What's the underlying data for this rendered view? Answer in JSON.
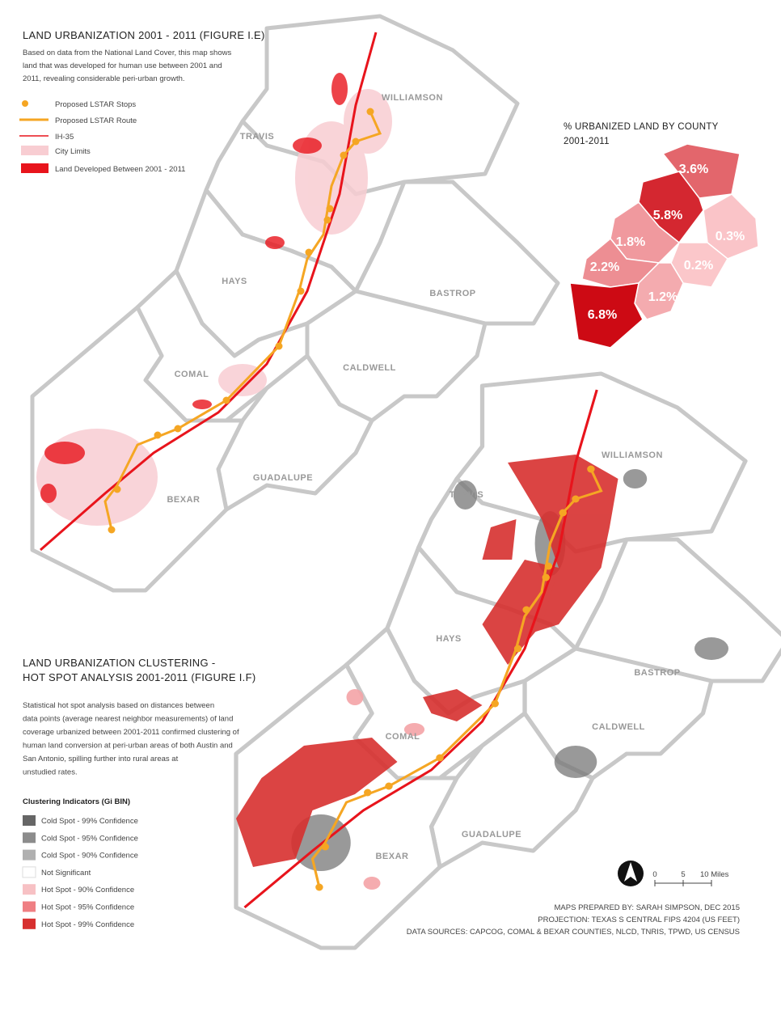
{
  "map1": {
    "title": "LAND URBANIZATION 2001 - 2011 (FIGURE I.E)",
    "description": [
      "Based on data from the National Land Cover, this map shows",
      "land that was developed for human use between 2001 and",
      "2011, revealing considerable peri-urban growth."
    ],
    "legend": [
      "Proposed LSTAR Stops",
      "Proposed LSTAR Route",
      "IH-35",
      "City Limits",
      "Land Developed Between 2001 - 2011"
    ],
    "counties": [
      "WILLIAMSON",
      "TRAVIS",
      "HAYS",
      "BASTROP",
      "COMAL",
      "CALDWELL",
      "GUADALUPE",
      "BEXAR"
    ]
  },
  "inset": {
    "title": [
      "% URBANIZED LAND BY COUNTY",
      "2001-2011"
    ],
    "values": [
      3.6,
      5.8,
      0.3,
      1.8,
      0.2,
      2.2,
      1.2,
      6.8
    ],
    "value_labels": [
      "3.6%",
      "5.8%",
      "0.3%",
      "1.8%",
      "0.2%",
      "2.2%",
      "1.2%",
      "6.8%"
    ]
  },
  "map2": {
    "title": [
      "LAND URBANIZATION CLUSTERING  -",
      "HOT SPOT ANALYSIS 2001-2011 (FIGURE I.F)"
    ],
    "description": [
      "Statistical hot spot analysis based on distances between",
      "data points (average nearest neighbor measurements) of land",
      "coverage urbanized between 2001-2011 confirmed clustering of",
      "human land conversion at peri-urban areas of both Austin and",
      "San Antonio, spilling further into rural areas at",
      "unstudied rates."
    ],
    "legend_title": "Clustering Indicators (Gi BIN)",
    "legend": [
      "Cold Spot - 99% Confidence",
      "Cold Spot - 95% Confidence",
      "Cold Spot - 90% Confidence",
      "Not Significant",
      "Hot Spot - 90% Confidence",
      "Hot Spot - 95% Confidence",
      "Hot Spot - 99% Confidence"
    ],
    "counties": [
      "WILLIAMSON",
      "TRAVIS",
      "HAYS",
      "BASTROP",
      "COMAL",
      "CALDWELL",
      "GUADALUPE",
      "BEXAR"
    ]
  },
  "scale": [
    "0",
    "5",
    "10 Miles"
  ],
  "credits": [
    "MAPS PREPARED BY: SARAH SIMPSON, DEC 2015",
    "PROJECTION: TEXAS S CENTRAL FIPS 4204 (US FEET)",
    "DATA SOURCES: CAPCOG, COMAL & BEXAR COUNTIES, NLCD, TNRIS, TPWD, US CENSUS"
  ]
}
